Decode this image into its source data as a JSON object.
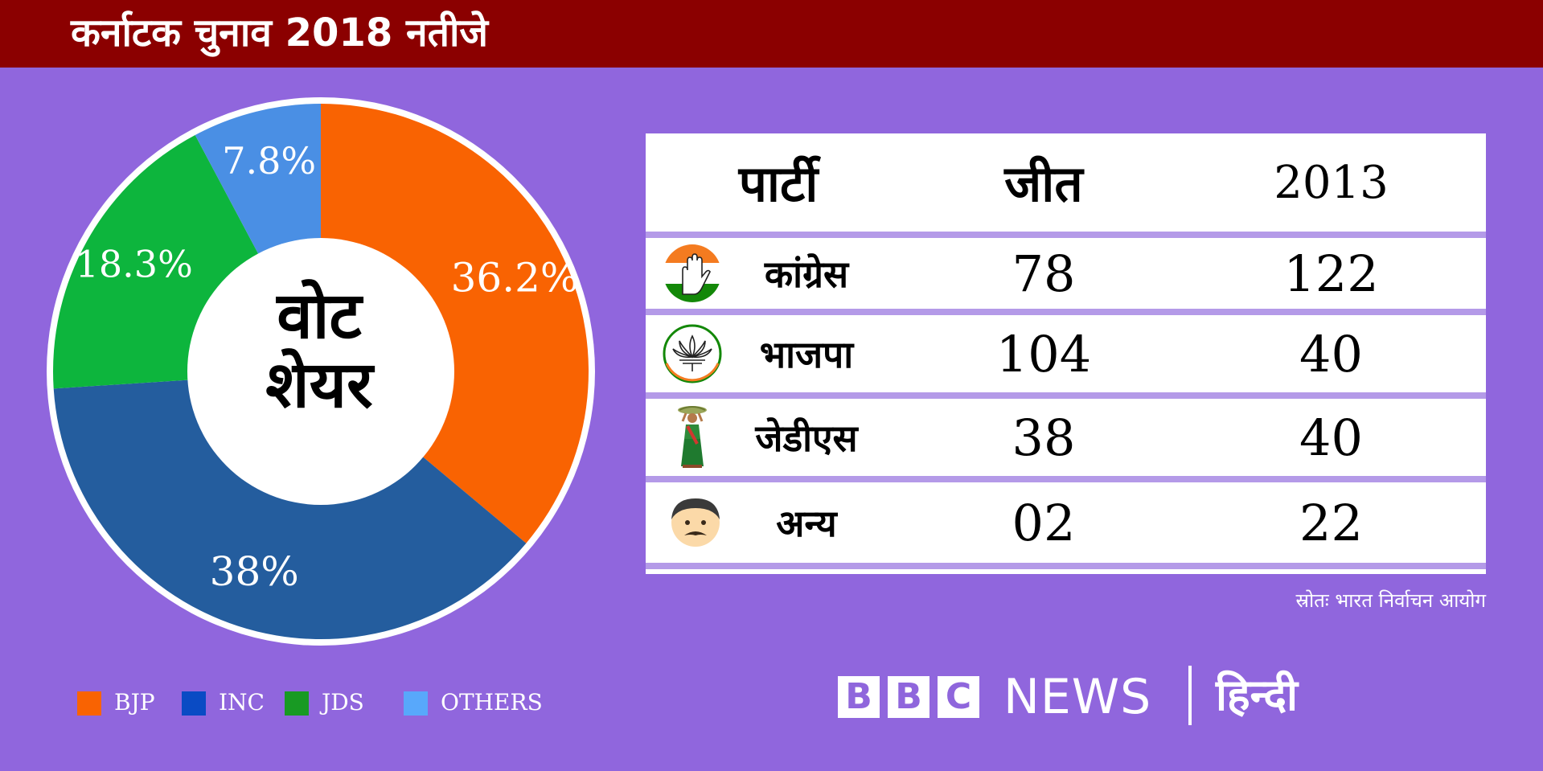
{
  "header": {
    "title": "कर्नाटक चुनाव 2018 नतीजे"
  },
  "pie": {
    "center_label_line1": "वोट",
    "center_label_line2": "शेयर"
  },
  "legend": [
    {
      "label": "BJP",
      "color": "#f96302"
    },
    {
      "label": "INC",
      "color": "#0a4bc4"
    },
    {
      "label": "JDS",
      "color": "#189a23"
    },
    {
      "label": "OTHERS",
      "color": "#58a8fb"
    }
  ],
  "chart_data": {
    "type": "pie",
    "title": "",
    "slices": [
      {
        "name": "BJP",
        "value": 36.2,
        "label": "36.2%",
        "color": "#f96302"
      },
      {
        "name": "INC",
        "value": 38,
        "label": "38%",
        "color": "#245d9e"
      },
      {
        "name": "JDS",
        "value": 18.3,
        "label": "18.3%",
        "color": "#0db53d"
      },
      {
        "name": "OTHERS",
        "value": 7.8,
        "label": "7.8%",
        "color": "#4a8fe4"
      }
    ]
  },
  "table": {
    "headers": [
      "पार्टी",
      "जीत",
      "2013"
    ],
    "rows": [
      {
        "party": "कांग्रेस",
        "icon": "congress-hand-icon",
        "wins": "78",
        "prev": "122"
      },
      {
        "party": "भाजपा",
        "icon": "bjp-lotus-icon",
        "wins": "104",
        "prev": "40"
      },
      {
        "party": "जेडीएस",
        "icon": "jds-farmer-woman-icon",
        "wins": "38",
        "prev": "40"
      },
      {
        "party": "अन्य",
        "icon": "others-man-icon",
        "wins": "02",
        "prev": "22"
      }
    ]
  },
  "source": "स्रोतः भारत निर्वाचन आयोग",
  "brand": {
    "b1": "B",
    "b2": "B",
    "b3": "C",
    "news": "NEWS",
    "hindi": "हिन्दी"
  }
}
